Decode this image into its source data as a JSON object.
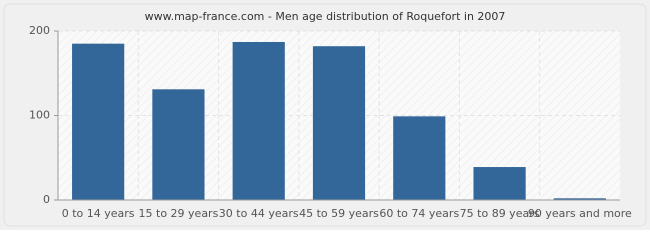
{
  "chart_data": {
    "type": "bar",
    "title": "www.map-france.com - Men age distribution of Roquefort in 2007",
    "categories": [
      "0 to 14 years",
      "15 to 29 years",
      "30 to 44 years",
      "45 to 59 years",
      "60 to 74 years",
      "75 to 89 years",
      "90 years and more"
    ],
    "values": [
      185,
      131,
      187,
      182,
      99,
      39,
      2
    ],
    "color": "#336699",
    "ylim": [
      0,
      200
    ],
    "yticks": [
      0,
      100,
      200
    ],
    "grid": true
  }
}
